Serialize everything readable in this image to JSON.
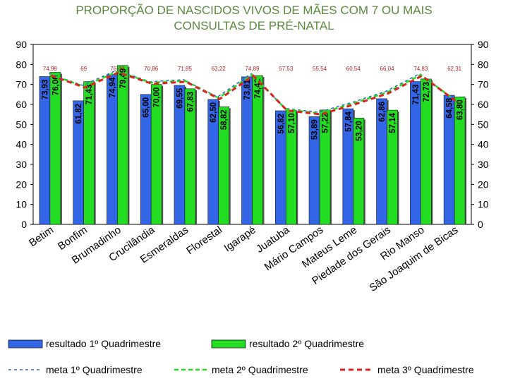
{
  "chart_data": {
    "type": "bar",
    "title_lines": [
      "PROPORÇÃO DE NASCIDOS VIVOS DE MÃES COM 7 OU MAIS",
      "CONSULTAS DE PRÉ-NATAL"
    ],
    "categories": [
      "Betim",
      "Bonfim",
      "Brumadinho",
      "Crucilândia",
      "Esmeraldas",
      "Florestal",
      "Igarapé",
      "Juatuba",
      "Mário Campos",
      "Mateus Leme",
      "Piedade dos Gerais",
      "Rio Manso",
      "São Joaquim de Bicas"
    ],
    "series": [
      {
        "name": "resultado 1º Quadrimestre",
        "kind": "bar",
        "color": "#3366e6",
        "values": [
          73.93,
          61.82,
          74.94,
          65.0,
          69.55,
          62.5,
          73.81,
          56.82,
          53.89,
          57.84,
          62.86,
          71.43,
          64.58
        ],
        "labels": [
          "73,93",
          "61,82",
          "74,94",
          "65,00",
          "69,55",
          "62,50",
          "73,81",
          "56,82",
          "53,89",
          "57,84",
          "62,86",
          "71,43",
          "64,58"
        ]
      },
      {
        "name": "resultado 2º Quadrimestre",
        "kind": "bar",
        "color": "#22dd22",
        "values": [
          76.06,
          71.43,
          79.49,
          70.0,
          67.83,
          58.82,
          74.42,
          57.1,
          57.22,
          53.2,
          57.14,
          72.73,
          63.8
        ],
        "labels": [
          "76,06",
          "71,43",
          "79,49",
          "70,00",
          "67,83",
          "58,82",
          "74,42",
          "57,10",
          "57,22",
          "53,20",
          "57,14",
          "72,73",
          "63,80"
        ]
      },
      {
        "name": "meta 1º Quadrimestre",
        "kind": "line",
        "color": "#2b6cc4",
        "values": [
          74.98,
          69,
          76.49,
          70.86,
          71.85,
          63.22,
          74.89,
          57.53,
          55.54,
          60.54,
          66.04,
          74.83,
          62.31
        ]
      },
      {
        "name": "meta 2º Quadrimestre",
        "kind": "line",
        "color": "#22dd22",
        "values": [
          74.98,
          69,
          76.49,
          70.86,
          71.85,
          63.22,
          74.89,
          57.53,
          55.54,
          60.54,
          66.04,
          74.83,
          62.31
        ]
      },
      {
        "name": "meta 3º Quadrimestre",
        "kind": "line",
        "color": "#dd2222",
        "values": [
          74.98,
          69,
          76.49,
          70.86,
          71.85,
          63.22,
          74.89,
          57.53,
          55.54,
          60.54,
          66.04,
          74.83,
          62.31
        ]
      }
    ],
    "meta_labels": [
      "74,98",
      "69",
      "76,49",
      "70,86",
      "71,85",
      "63,22",
      "74,89",
      "57,53",
      "55,54",
      "60,54",
      "66,04",
      "74,83",
      "62,31"
    ],
    "ylim": [
      0,
      90
    ],
    "yticks": [
      0,
      10,
      20,
      30,
      40,
      50,
      60,
      70,
      80,
      90
    ],
    "xlabel": "",
    "ylabel": "",
    "grid": false,
    "legend_position": "bottom"
  }
}
